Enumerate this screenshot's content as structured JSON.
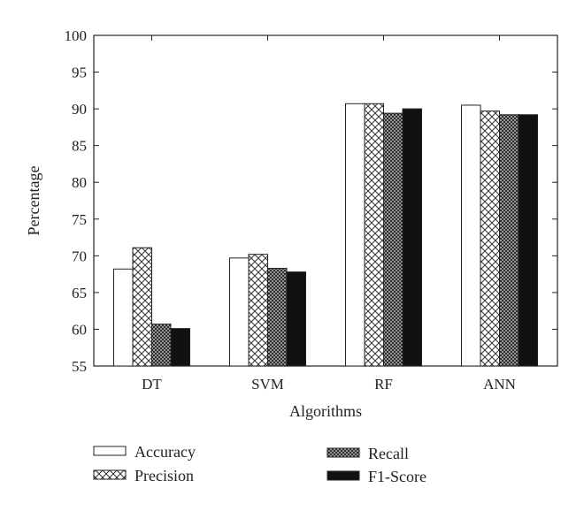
{
  "chart_data": {
    "type": "bar",
    "title": "",
    "xlabel": "Algorithms",
    "ylabel": "Percentage",
    "ylim": [
      55,
      100
    ],
    "yticks": [
      55,
      60,
      65,
      70,
      75,
      80,
      85,
      90,
      95,
      100
    ],
    "categories": [
      "DT",
      "SVM",
      "RF",
      "ANN"
    ],
    "series": [
      {
        "name": "Accuracy",
        "pattern": "white",
        "values": [
          68.2,
          69.7,
          90.7,
          90.5
        ]
      },
      {
        "name": "Precision",
        "pattern": "crosshatch",
        "values": [
          71.1,
          70.2,
          90.7,
          89.7
        ]
      },
      {
        "name": "Recall",
        "pattern": "dense",
        "values": [
          60.7,
          68.3,
          89.4,
          89.2
        ]
      },
      {
        "name": "F1-Score",
        "pattern": "black",
        "values": [
          60.1,
          67.8,
          90.0,
          89.2
        ]
      }
    ],
    "grid": false,
    "legend_position": "bottom"
  }
}
